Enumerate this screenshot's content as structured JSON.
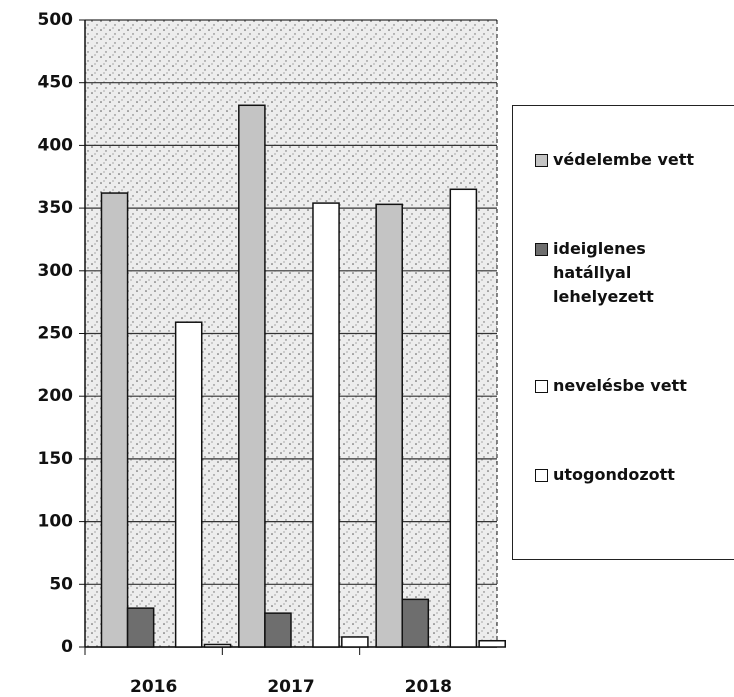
{
  "chart_data": {
    "type": "bar",
    "categories": [
      "2016",
      "2017",
      "2018"
    ],
    "series": [
      {
        "name": "védelembe vett",
        "color": "#c4c4c4",
        "values": [
          362,
          432,
          353
        ]
      },
      {
        "name": "ideiglenes hatállyal lehelyezett",
        "color": "#6e6e6e",
        "values": [
          31,
          27,
          38
        ]
      },
      {
        "name": "nevelésbe vett",
        "color": "#ffffff",
        "values": [
          259,
          354,
          365
        ]
      },
      {
        "name": "utogondozott",
        "color": "#ffffff",
        "values": [
          2,
          8,
          5
        ]
      }
    ],
    "ylim": [
      0,
      500
    ],
    "yticks": [
      0,
      50,
      100,
      150,
      200,
      250,
      300,
      350,
      400,
      450,
      500
    ],
    "grid": true,
    "legend": "right"
  }
}
